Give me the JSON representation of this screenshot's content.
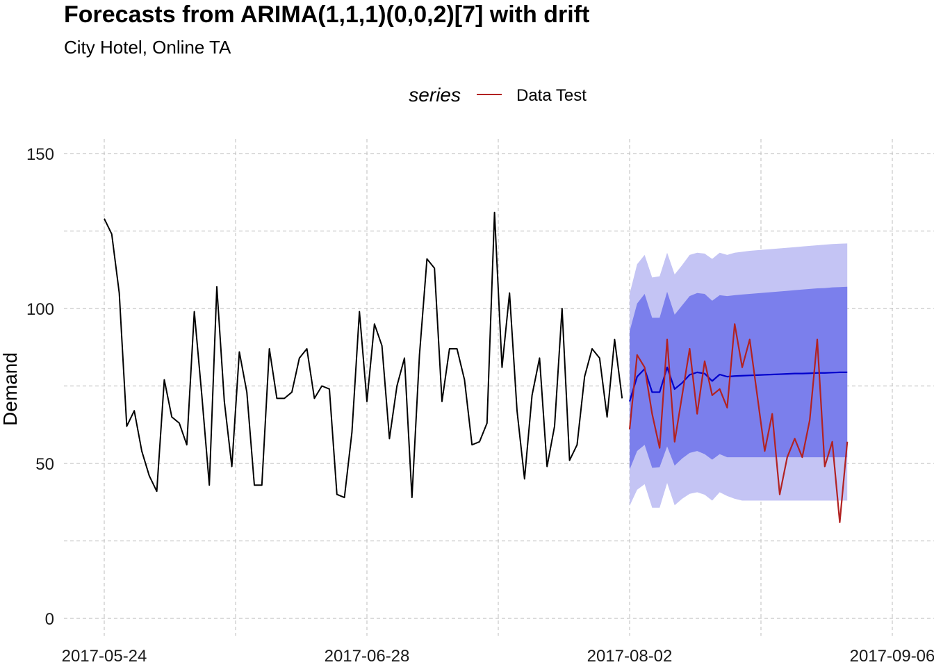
{
  "chart_data": {
    "type": "line",
    "title": "Forecasts from ARIMA(1,1,1)(0,0,2)[7] with drift",
    "subtitle": "City Hotel, Online TA",
    "xlabel": "",
    "ylabel": "Demand",
    "ylim": [
      0,
      150
    ],
    "yticks": [
      0,
      50,
      100,
      150
    ],
    "xticks": [
      "2017-05-24",
      "2017-06-28",
      "2017-08-02",
      "2017-09-06"
    ],
    "grid": true,
    "legend": {
      "title": "series",
      "entries": [
        "Data Test"
      ],
      "placement": "top"
    },
    "colors": {
      "train": "#000000",
      "test": "#b22222",
      "forecast": "#0000cc",
      "pi80": "#7b7fec",
      "pi95": "#c4c4f4"
    },
    "train": {
      "start": "2017-05-24",
      "freq": "daily",
      "values": [
        129,
        124,
        105,
        62,
        67,
        54,
        46,
        41,
        77,
        65,
        63,
        56,
        99,
        72,
        43,
        107,
        70,
        49,
        86,
        73,
        43,
        43,
        87,
        71,
        71,
        73,
        84,
        87,
        71,
        75,
        74,
        40,
        39,
        60,
        99,
        70,
        95,
        88,
        58,
        75,
        84,
        39,
        85,
        116,
        113,
        70,
        87,
        87,
        77,
        56,
        57,
        63,
        131,
        81,
        105,
        67,
        45,
        72,
        84,
        49,
        62,
        100,
        51,
        56,
        78,
        87,
        84,
        65,
        90,
        71
      ]
    },
    "test": {
      "name": "Data Test",
      "start": "2017-08-02",
      "freq": "daily",
      "values": [
        61,
        85,
        81,
        66,
        55,
        90,
        57,
        72,
        87,
        66,
        83,
        72,
        74,
        68,
        95,
        81,
        90,
        72,
        54,
        66,
        40,
        52,
        58,
        52,
        64,
        90,
        49,
        57,
        31,
        57
      ]
    },
    "forecast": {
      "start": "2017-08-02",
      "mean": [
        70,
        78,
        80.5,
        73,
        73,
        81,
        74,
        76,
        78.6,
        79.4,
        79,
        76.6,
        78.7,
        78,
        78.2,
        78.3,
        78.4,
        78.5,
        78.6,
        78.7,
        78.8,
        78.9,
        79,
        79,
        79.1,
        79.2,
        79.2,
        79.3,
        79.4,
        79.4
      ],
      "lo80": [
        48,
        54,
        56,
        48.6,
        48.8,
        55.5,
        49.3,
        51.6,
        53.4,
        54,
        53,
        51.2,
        53,
        52,
        52,
        52,
        52,
        52,
        52,
        52,
        52,
        52,
        52,
        52,
        52,
        52,
        52,
        52,
        52,
        52
      ],
      "hi80": [
        92.6,
        101.6,
        104.7,
        97,
        97,
        105.4,
        98,
        101,
        104,
        105,
        104.7,
        102.5,
        104.3,
        104,
        104.3,
        104.5,
        104.7,
        104.9,
        105.1,
        105.3,
        105.5,
        105.7,
        105.9,
        106.1,
        106.3,
        106.5,
        106.6,
        106.8,
        106.9,
        107
      ],
      "lo95": [
        36.3,
        41.5,
        43.3,
        35.7,
        35.7,
        43.7,
        36.5,
        38.6,
        40.2,
        40.7,
        39.9,
        38,
        40.7,
        39.5,
        38.6,
        38,
        38,
        38,
        38,
        38,
        38,
        38,
        38,
        38,
        38,
        38,
        38,
        38,
        38,
        38
      ],
      "hi95": [
        104.7,
        114.3,
        117.3,
        110,
        110.4,
        118,
        111,
        114,
        117.3,
        118,
        117.7,
        116,
        118,
        117.3,
        118,
        118.3,
        118.6,
        118.8,
        119,
        119.2,
        119.4,
        119.6,
        119.8,
        120,
        120.2,
        120.4,
        120.6,
        120.8,
        120.9,
        121
      ]
    }
  }
}
